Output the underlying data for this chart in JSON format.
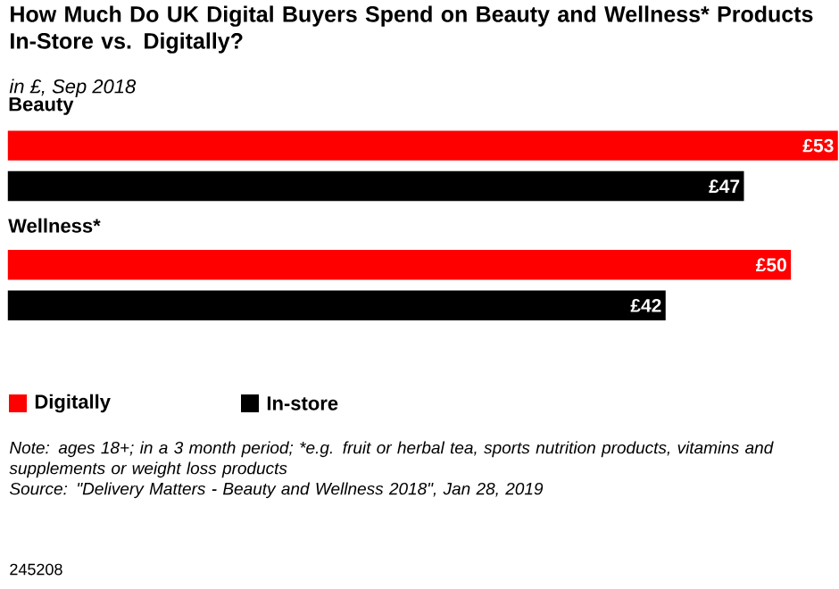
{
  "chart_data": {
    "type": "bar",
    "orientation": "horizontal",
    "title": "How Much Do UK Digital Buyers Spend on Beauty and Wellness* Products In-Store vs. Digitally?",
    "subtitle": "in £, Sep 2018",
    "categories": [
      "Beauty",
      "Wellness*"
    ],
    "series": [
      {
        "name": "Digitally",
        "color": "#ff0000",
        "values": [
          53,
          50
        ],
        "value_labels": [
          "£53",
          "£50"
        ]
      },
      {
        "name": "In-store",
        "color": "#000000",
        "values": [
          47,
          42
        ],
        "value_labels": [
          "£47",
          "£42"
        ]
      }
    ],
    "legend": "bottom",
    "tick_labels": false,
    "annotations": [
      "Note: ages 18+; in a 3 month period; *e.g. fruit or herbal tea, sports nutrition products, vitamins and supplements or weight loss products",
      "Source: \"Delivery Matters - Beauty and Wellness 2018\", Jan 28, 2019",
      "245208"
    ]
  }
}
